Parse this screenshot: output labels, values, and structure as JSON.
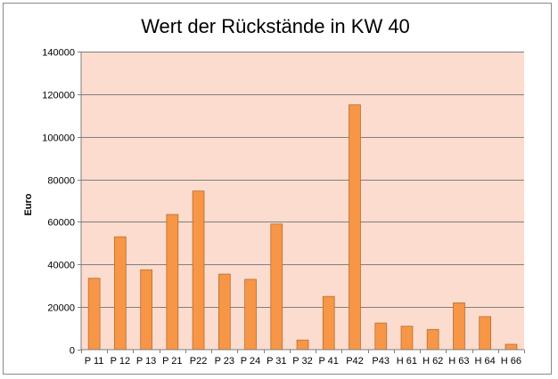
{
  "chart_data": {
    "type": "bar",
    "title": "Wert der Rückstände in KW 40",
    "xlabel": "",
    "ylabel": "Euro",
    "categories": [
      "P 11",
      "P 12",
      "P 13",
      "P 21",
      "P22",
      "P 23",
      "P 24",
      "P 31",
      "P 32",
      "P 41",
      "P42",
      "P43",
      "H 61",
      "H 62",
      "H 63",
      "H 64",
      "H 66"
    ],
    "values": [
      33500,
      53000,
      37500,
      63500,
      74500,
      35500,
      33000,
      59000,
      4500,
      25000,
      115000,
      12500,
      11000,
      9500,
      22000,
      15500,
      2500
    ],
    "ylim": [
      0,
      140000
    ],
    "yticks": [
      0,
      20000,
      40000,
      60000,
      80000,
      100000,
      120000,
      140000
    ],
    "ytick_labels": [
      "0",
      "20000",
      "40000",
      "60000",
      "80000",
      "100000",
      "120000",
      "140000"
    ],
    "grid": true,
    "colors": {
      "plot_background": "#fbdcce",
      "bar_fill": "#f79646",
      "bar_stroke": "#b66d31",
      "gridline": "#7f7f7f"
    }
  }
}
